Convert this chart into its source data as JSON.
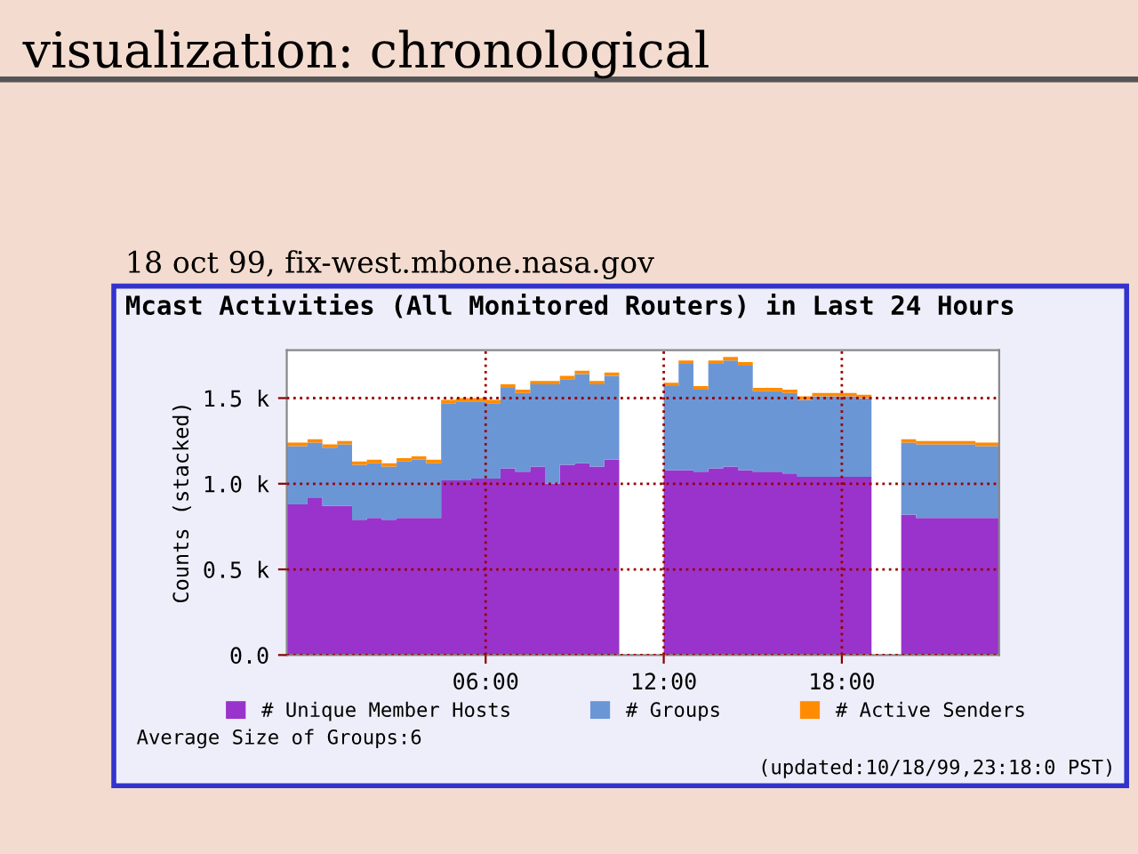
{
  "chart_data": {
    "type": "area",
    "stacked": true,
    "title": "visualization: chronological",
    "subtitle": "Mcast Activities (All Monitored Routers) in Last 24 Hours",
    "ylabel": "Counts (stacked)",
    "annotations": [
      "18 oct 99, fix-west.mbone.nasa.gov",
      "Average Size of Groups:6",
      "(updated:10/18/99,23:18:0 PST)"
    ],
    "x": [
      -0.7,
      0,
      0.5,
      1,
      1.5,
      2,
      2.5,
      3,
      3.5,
      4,
      4.5,
      5,
      5.5,
      6,
      6.5,
      7,
      7.5,
      8,
      8.5,
      9,
      9.5,
      10,
      10.5,
      11,
      11.5,
      12,
      12.5,
      13,
      13.5,
      14,
      14.5,
      15,
      15.5,
      16,
      16.5,
      17,
      17.5,
      18,
      18.5,
      19,
      19.5,
      20,
      20.5,
      21,
      21.5,
      22,
      22.5,
      23,
      23.3
    ],
    "series": [
      {
        "name": "# Unique Member Hosts",
        "color": "#9933cc",
        "values": [
          0.88,
          0.92,
          0.87,
          0.87,
          0.79,
          0.8,
          0.79,
          0.8,
          0.8,
          0.8,
          1.02,
          1.02,
          1.03,
          1.03,
          1.09,
          1.07,
          1.1,
          1.0,
          1.11,
          1.12,
          1.1,
          1.14,
          1.1,
          null,
          null,
          1.08,
          1.08,
          1.07,
          1.09,
          1.1,
          1.08,
          1.07,
          1.07,
          1.06,
          1.04,
          1.04,
          1.04,
          1.04,
          1.04,
          1.04,
          null,
          0.82,
          0.8,
          0.8,
          0.8,
          0.8,
          0.8,
          0.8,
          0.8
        ]
      },
      {
        "name": "# Groups",
        "color": "#6b96d6",
        "values": [
          0.34,
          0.32,
          0.34,
          0.36,
          0.32,
          0.32,
          0.31,
          0.33,
          0.34,
          0.32,
          0.45,
          0.46,
          0.45,
          0.44,
          0.47,
          0.46,
          0.48,
          0.58,
          0.5,
          0.52,
          0.48,
          0.49,
          0.48,
          null,
          null,
          0.49,
          0.62,
          0.48,
          0.61,
          0.62,
          0.61,
          0.47,
          0.47,
          0.47,
          0.45,
          0.47,
          0.47,
          0.47,
          0.46,
          0.46,
          null,
          0.42,
          0.43,
          0.43,
          0.43,
          0.43,
          0.42,
          0.42,
          0.41
        ]
      },
      {
        "name": "# Active Senders",
        "color": "#ff8c00",
        "values": [
          0.02,
          0.02,
          0.02,
          0.02,
          0.02,
          0.02,
          0.02,
          0.02,
          0.02,
          0.02,
          0.02,
          0.02,
          0.02,
          0.02,
          0.02,
          0.02,
          0.02,
          0.02,
          0.02,
          0.02,
          0.02,
          0.02,
          0.02,
          null,
          null,
          0.02,
          0.02,
          0.02,
          0.02,
          0.02,
          0.02,
          0.02,
          0.02,
          0.02,
          0.02,
          0.02,
          0.02,
          0.02,
          0.02,
          0.02,
          null,
          0.02,
          0.02,
          0.02,
          0.02,
          0.02,
          0.02,
          0.02,
          0.02
        ]
      }
    ],
    "xlim": [
      -0.7,
      23.3
    ],
    "xticks": [
      {
        "value": 6,
        "label": "06:00"
      },
      {
        "value": 12,
        "label": "12:00"
      },
      {
        "value": 18,
        "label": "18:00"
      }
    ],
    "ylim": [
      0,
      1.78
    ],
    "yticks": [
      {
        "value": 0,
        "label": "0.0"
      },
      {
        "value": 0.5,
        "label": "0.5 k"
      },
      {
        "value": 1.0,
        "label": "1.0 k"
      },
      {
        "value": 1.5,
        "label": "1.5 k"
      }
    ],
    "grid": true,
    "legend": "bottom"
  }
}
